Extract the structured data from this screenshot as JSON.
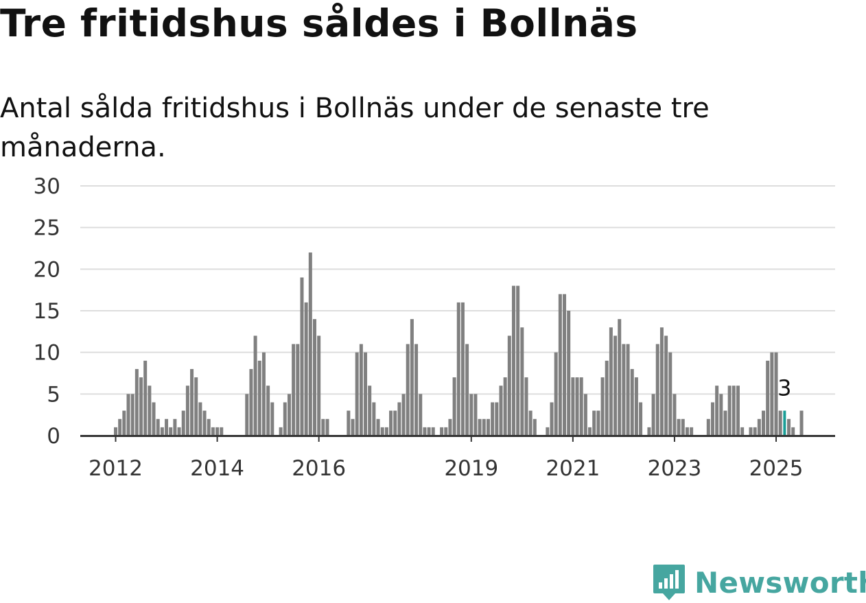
{
  "title": "Tre fritidshus såldes i Bollnäs",
  "subtitle": "Antal sålda fritidshus i Bollnäs under de senaste tre månaderna.",
  "brand": {
    "name": "Newsworthy",
    "color": "#46a6a0",
    "icon": "bar-chart-speech-bubble-icon"
  },
  "chart_data": {
    "type": "bar",
    "ylim": [
      0,
      30
    ],
    "y_ticks": [
      0,
      5,
      10,
      15,
      20,
      25,
      30
    ],
    "x_ticks": [
      {
        "label": "2012",
        "year": 2012
      },
      {
        "label": "2014",
        "year": 2014
      },
      {
        "label": "2016",
        "year": 2016
      },
      {
        "label": "2019",
        "year": 2019
      },
      {
        "label": "2021",
        "year": 2021
      },
      {
        "label": "2023",
        "year": 2023
      },
      {
        "label": "2025",
        "year": 2025
      }
    ],
    "grid": true,
    "colors": {
      "bars": "#808080",
      "highlight": "#1a9e96",
      "grid": "#dddddd",
      "axis": "#333333"
    },
    "start_month": "2012-01",
    "values": [
      1,
      2,
      3,
      5,
      5,
      8,
      7,
      9,
      6,
      4,
      2,
      1,
      2,
      1,
      2,
      1,
      3,
      6,
      8,
      7,
      4,
      3,
      2,
      1,
      1,
      1,
      0,
      0,
      0,
      0,
      0,
      5,
      8,
      12,
      9,
      10,
      6,
      4,
      0,
      1,
      4,
      5,
      11,
      11,
      19,
      16,
      22,
      14,
      12,
      2,
      2,
      0,
      0,
      0,
      0,
      3,
      2,
      10,
      11,
      10,
      6,
      4,
      2,
      1,
      1,
      3,
      3,
      4,
      5,
      11,
      14,
      11,
      5,
      1,
      1,
      1,
      0,
      1,
      1,
      2,
      7,
      16,
      16,
      11,
      5,
      5,
      2,
      2,
      2,
      4,
      4,
      6,
      7,
      12,
      18,
      18,
      13,
      7,
      3,
      2,
      0,
      0,
      1,
      4,
      10,
      17,
      17,
      15,
      7,
      7,
      7,
      5,
      1,
      3,
      3,
      7,
      9,
      13,
      12,
      14,
      11,
      11,
      8,
      7,
      4,
      0,
      1,
      5,
      11,
      13,
      12,
      10,
      5,
      2,
      2,
      1,
      1,
      0,
      0,
      0,
      2,
      4,
      6,
      5,
      3,
      6,
      6,
      6,
      1,
      0,
      1,
      1,
      2,
      3,
      9,
      10,
      10,
      3,
      3,
      2,
      1,
      0,
      3
    ],
    "highlight": {
      "date": "2025-03",
      "value": 3,
      "label": "3"
    }
  }
}
